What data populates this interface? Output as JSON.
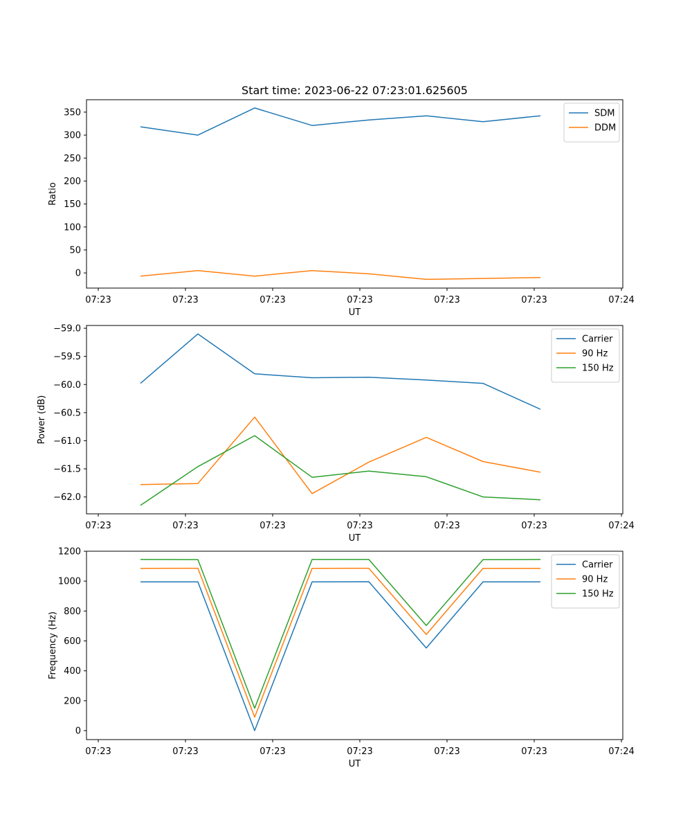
{
  "chart_data": [
    {
      "type": "line",
      "title": "Start time: 2023-06-22 07:23:01.625605",
      "xlabel": "UT",
      "ylabel": "Ratio",
      "xtick_labels": [
        "07:23",
        "07:23",
        "07:23",
        "07:23",
        "07:23",
        "07:23",
        "07:24"
      ],
      "yticks": [
        0,
        50,
        100,
        150,
        200,
        250,
        300,
        350
      ],
      "ylim": [
        -33,
        377
      ],
      "legend": "top-right",
      "grid": false,
      "series": [
        {
          "name": "SDM",
          "color": "#1f77b4",
          "values": [
            318,
            300,
            359,
            321,
            333,
            342,
            329,
            342
          ]
        },
        {
          "name": "DDM",
          "color": "#ff7f0e",
          "values": [
            -7,
            5,
            -7,
            5,
            -2,
            -14,
            -12,
            -10
          ]
        }
      ]
    },
    {
      "type": "line",
      "title": "",
      "xlabel": "UT",
      "ylabel": "Power (dB)",
      "xtick_labels": [
        "07:23",
        "07:23",
        "07:23",
        "07:23",
        "07:23",
        "07:23",
        "07:24"
      ],
      "yticks": [
        -62.0,
        -61.5,
        -61.0,
        -60.5,
        -60.0,
        -59.5,
        -59.0
      ],
      "ytick_labels": [
        "−62.0",
        "−61.5",
        "−61.0",
        "−60.5",
        "−60.0",
        "−59.5",
        "−59.0"
      ],
      "ylim": [
        -62.3,
        -58.95
      ],
      "legend": "top-right",
      "grid": false,
      "series": [
        {
          "name": "Carrier",
          "color": "#1f77b4",
          "values": [
            -59.98,
            -59.1,
            -59.81,
            -59.88,
            -59.87,
            -59.92,
            -59.98,
            -60.44
          ]
        },
        {
          "name": "90 Hz",
          "color": "#ff7f0e",
          "values": [
            -61.78,
            -61.76,
            -60.58,
            -61.94,
            -61.38,
            -60.94,
            -61.37,
            -61.56
          ]
        },
        {
          "name": "150 Hz",
          "color": "#2ca02c",
          "values": [
            -62.15,
            -61.46,
            -60.91,
            -61.65,
            -61.54,
            -61.64,
            -62.0,
            -62.05
          ]
        }
      ]
    },
    {
      "type": "line",
      "title": "",
      "xlabel": "UT",
      "ylabel": "Frequency (Hz)",
      "xtick_labels": [
        "07:23",
        "07:23",
        "07:23",
        "07:23",
        "07:23",
        "07:23",
        "07:24"
      ],
      "yticks": [
        0,
        200,
        400,
        600,
        800,
        1000,
        1200
      ],
      "ylim": [
        -60,
        1200
      ],
      "legend": "top-right",
      "grid": false,
      "series": [
        {
          "name": "Carrier",
          "color": "#1f77b4",
          "values": [
            995,
            995,
            0,
            995,
            996,
            553,
            995,
            995
          ]
        },
        {
          "name": "90 Hz",
          "color": "#ff7f0e",
          "values": [
            1085,
            1086,
            90,
            1085,
            1086,
            643,
            1085,
            1085
          ]
        },
        {
          "name": "150 Hz",
          "color": "#2ca02c",
          "values": [
            1145,
            1144,
            150,
            1145,
            1145,
            703,
            1144,
            1145
          ]
        }
      ]
    }
  ]
}
